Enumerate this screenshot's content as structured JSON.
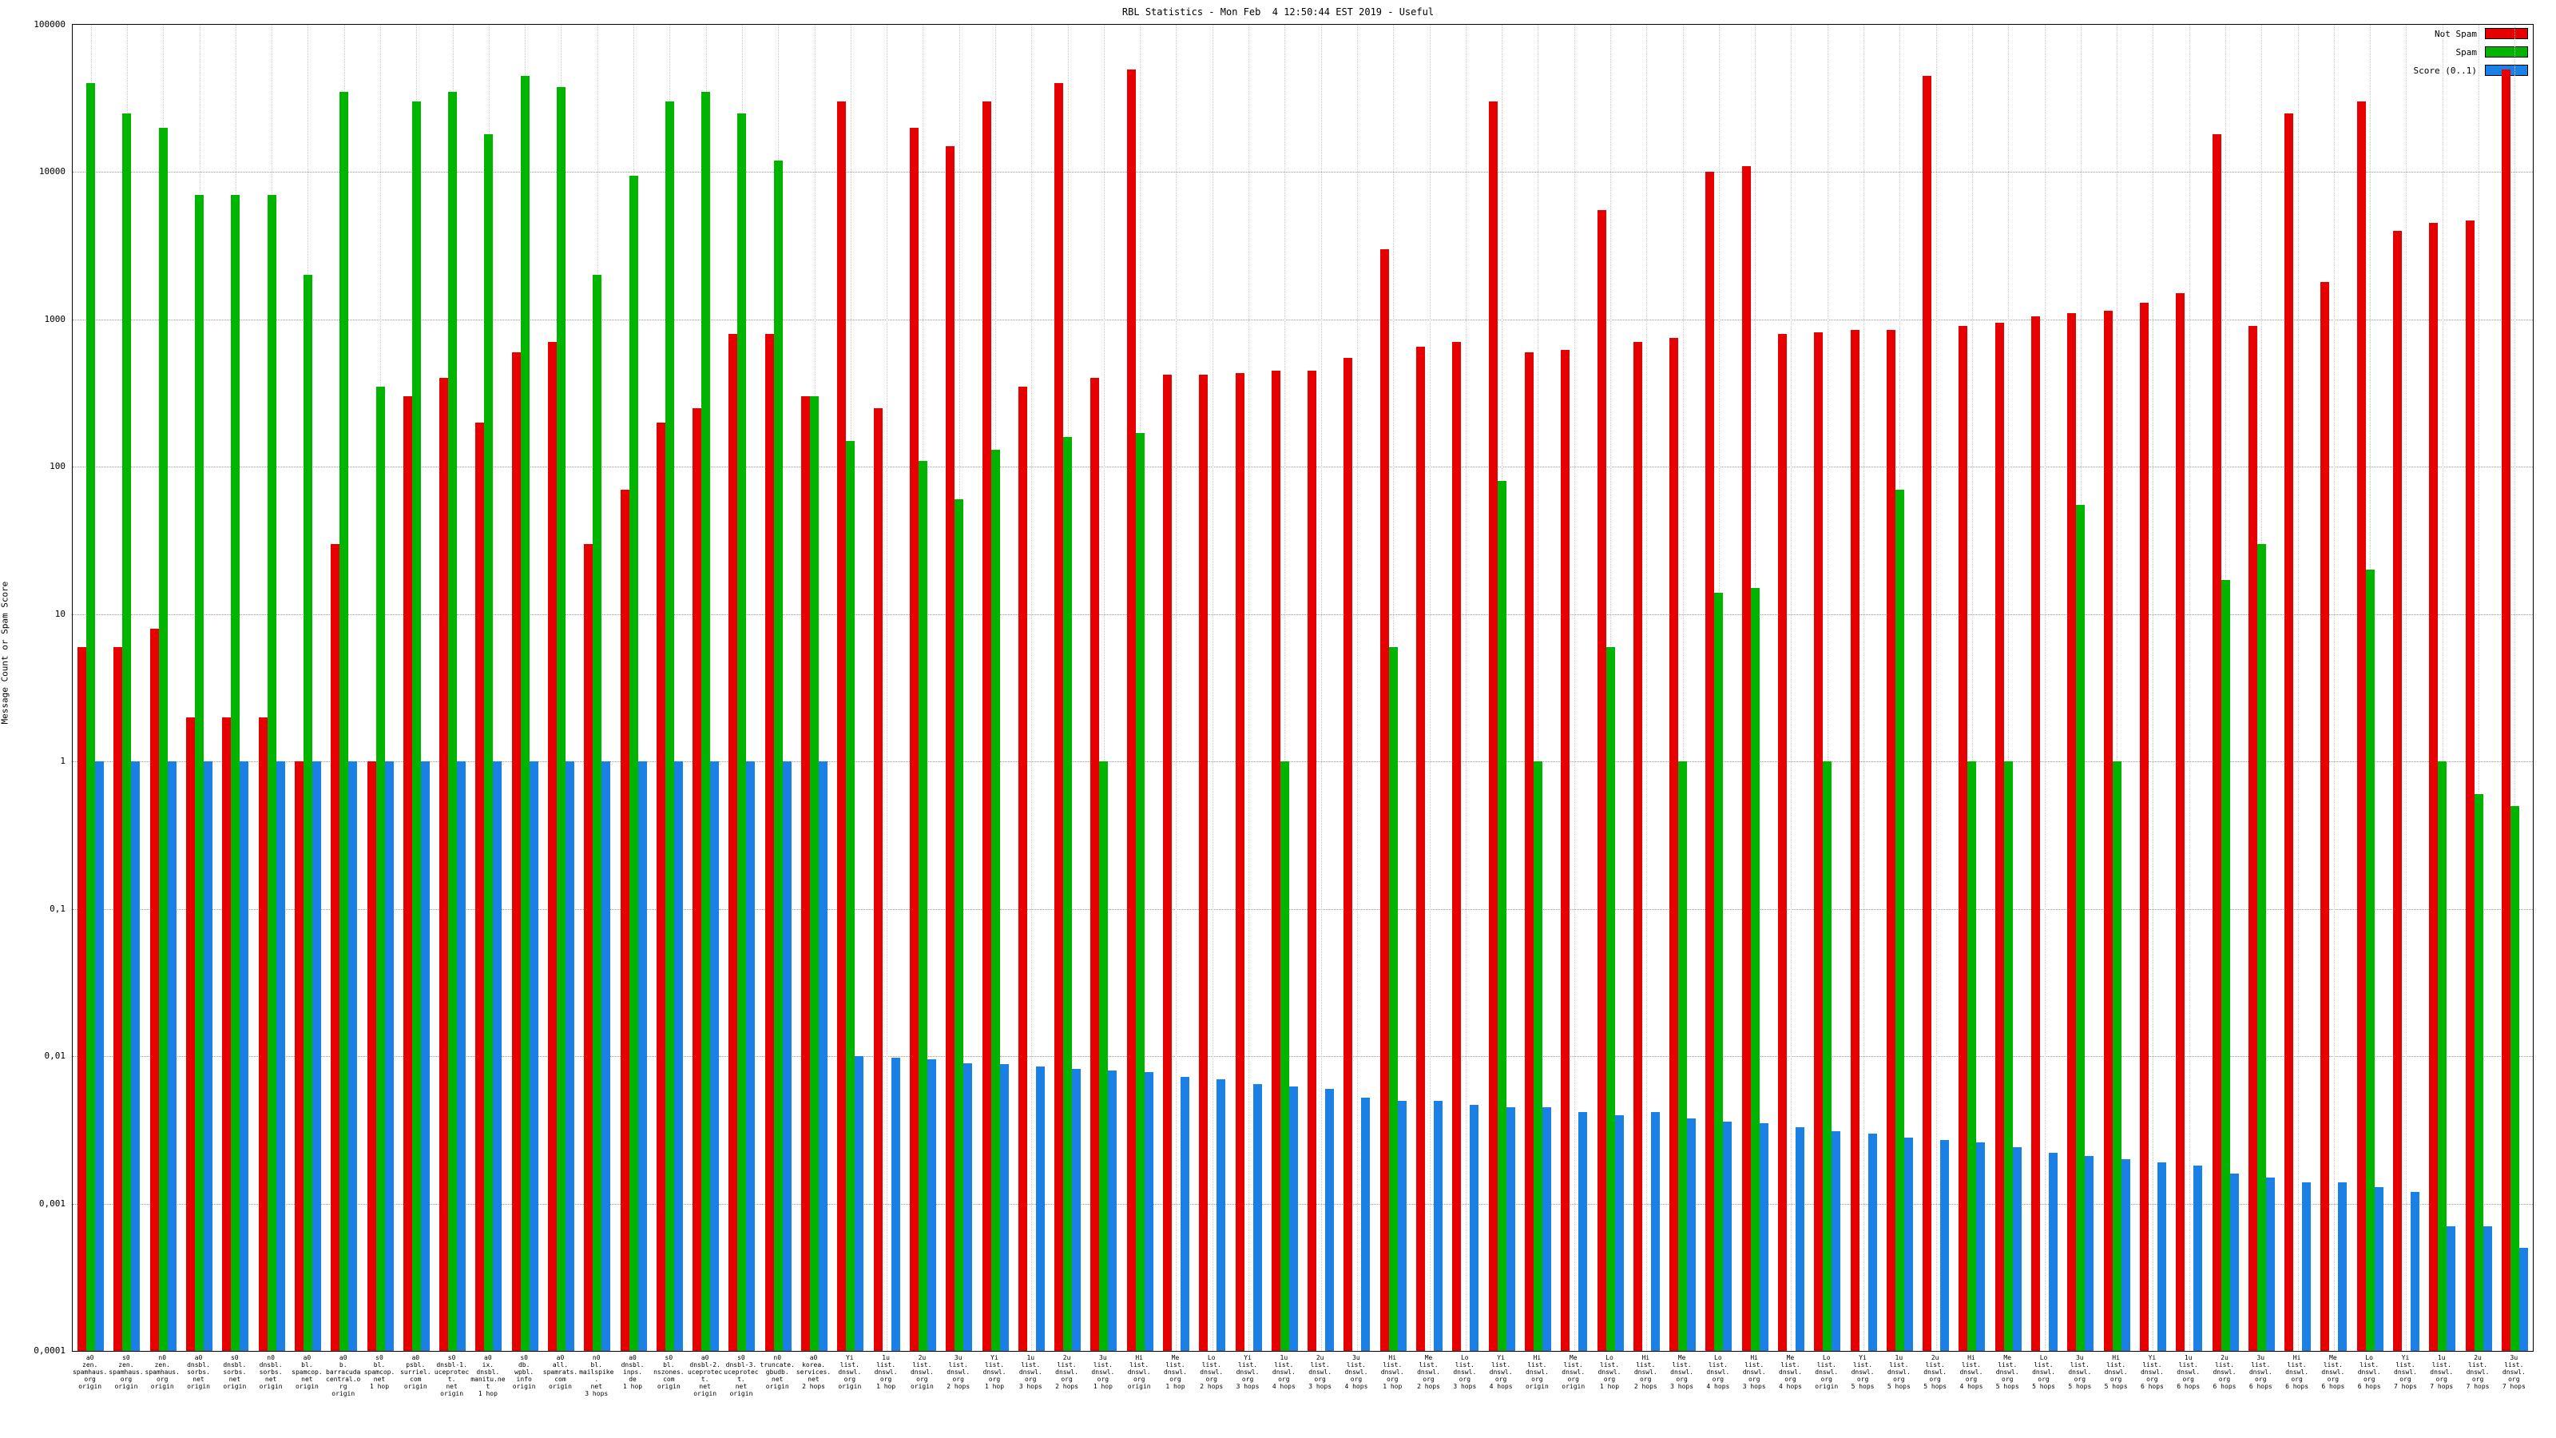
{
  "title_text": "RBL Statistics - Mon Feb  4 12:50:44 EST 2019 - Useful",
  "legend": [
    {
      "label": "Not Spam",
      "color": "#e60000"
    },
    {
      "label": "Spam",
      "color": "#00b400"
    },
    {
      "label": "Score (0..1)",
      "color": "#1a80e6"
    }
  ],
  "chart_data": {
    "type": "bar",
    "title": "RBL Statistics - Mon Feb  4 12:50:44 EST 2019 - Useful",
    "xlabel": "",
    "ylabel": "Message Count or Spam Score",
    "y_scale": "log",
    "ylim": [
      0.0001,
      100000
    ],
    "grid": true,
    "legend_position": "top-right",
    "ytick_labels": [
      "100000",
      "10000",
      "1000",
      "100",
      "10",
      "1",
      "0,1",
      "0,01",
      "0,001",
      "0,0001"
    ],
    "categories": [
      "a0\nzen.\nspamhaus.\norg\norigin",
      "s0\nzen.\nspamhaus.\norg\norigin",
      "n0\nzen.\nspamhaus.\norg\norigin",
      "a0\ndnsbl.\nsorbs.\nnet\norigin",
      "s0\ndnsbl.\nsorbs.\nnet\norigin",
      "n0\ndnsbl.\nsorbs.\nnet\norigin",
      "a0\nbl.\nspamcop.\nnet\norigin",
      "a0\nb.\nbarracuda\ncentral.org\norigin",
      "s0\nbl.\nspamcop.\nnet\n1 hop",
      "a0\npsbl.\nsurriel.\ncom\norigin",
      "s0\ndnsbl-1.\nuceprotect.\nnet\norigin",
      "a0\nix.\ndnsbl.\nmanitu.net\n1 hop",
      "s0\ndb.\nwpbl.\ninfo\norigin",
      "a0\nall.\nspamrats.\ncom\norigin",
      "n0\nbl.\nmailspike.\nnet\n3 hops",
      "a0\ndnsbl.\ninps.\nde\n1 hop",
      "s0\nbl.\nnszones.\ncom\norigin",
      "a0\ndnsbl-2.\nuceprotect.\nnet\norigin",
      "s0\ndnsbl-3.\nuceprotect.\nnet\norigin",
      "n0\ntruncate.\ngbudb.\nnet\norigin",
      "a0\nkorea.\nservices.\nnet\n2 hops",
      "Yi\nlist.\ndnswl.\norg\norigin",
      "1u\nlist.\ndnswl.\norg\n1 hop",
      "2u\nlist.\ndnswl.\norg\norigin",
      "3u\nlist.\ndnswl.\norg\n2 hops",
      "Yi\nlist.\ndnswl.\norg\n1 hop",
      "1u\nlist.\ndnswl.\norg\n3 hops",
      "2u\nlist.\ndnswl.\norg\n2 hops",
      "3u\nlist.\ndnswl.\norg\n1 hop",
      "Hi\nlist.\ndnswl.\norg\norigin",
      "Me\nlist.\ndnswl.\norg\n1 hop",
      "Lo\nlist.\ndnswl.\norg\n2 hops",
      "Yi\nlist.\ndnswl.\norg\n3 hops",
      "1u\nlist.\ndnswl.\norg\n4 hops",
      "2u\nlist.\ndnswl.\norg\n3 hops",
      "3u\nlist.\ndnswl.\norg\n4 hops",
      "Hi\nlist.\ndnswl.\norg\n1 hop",
      "Me\nlist.\ndnswl.\norg\n2 hops",
      "Lo\nlist.\ndnswl.\norg\n3 hops",
      "Yi\nlist.\ndnswl.\norg\n4 hops",
      "Hi\nlist.\ndnswl.\norg\norigin",
      "Me\nlist.\ndnswl.\norg\norigin",
      "Lo\nlist.\ndnswl.\norg\n1 hop",
      "Hi\nlist.\ndnswl.\norg\n2 hops",
      "Me\nlist.\ndnswl.\norg\n3 hops",
      "Lo\nlist.\ndnswl.\norg\n4 hops",
      "Hi\nlist.\ndnswl.\norg\n3 hops",
      "Me\nlist.\ndnswl.\norg\n4 hops",
      "Lo\nlist.\ndnswl.\norg\norigin",
      "Yi\nlist.\ndnswl.\norg\n5 hops",
      "1u\nlist.\ndnswl.\norg\n5 hops",
      "2u\nlist.\ndnswl.\norg\n5 hops",
      "Hi\nlist.\ndnswl.\norg\n4 hops",
      "Me\nlist.\ndnswl.\norg\n5 hops",
      "Lo\nlist.\ndnswl.\norg\n5 hops",
      "3u\nlist.\ndnswl.\norg\n5 hops",
      "Hi\nlist.\ndnswl.\norg\n5 hops",
      "Yi\nlist.\ndnswl.\norg\n6 hops",
      "1u\nlist.\ndnswl.\norg\n6 hops",
      "2u\nlist.\ndnswl.\norg\n6 hops",
      "3u\nlist.\ndnswl.\norg\n6 hops",
      "Hi\nlist.\ndnswl.\norg\n6 hops",
      "Me\nlist.\ndnswl.\norg\n6 hops",
      "Lo\nlist.\ndnswl.\norg\n6 hops",
      "Yi\nlist.\ndnswl.\norg\n7 hops",
      "1u\nlist.\ndnswl.\norg\n7 hops",
      "2u\nlist.\ndnswl.\norg\n7 hops",
      "3u\nlist.\ndnswl.\norg\n7 hops"
    ],
    "series": [
      {
        "name": "Not Spam",
        "color": "#e60000",
        "values": [
          6,
          6,
          8,
          2,
          2,
          2,
          1,
          30,
          1,
          300,
          400,
          200,
          600,
          700,
          30,
          70,
          200,
          250,
          800,
          800,
          300,
          30000,
          250,
          20000,
          15000,
          30000,
          350,
          40000,
          400,
          50000,
          420,
          420,
          430,
          450,
          450,
          550,
          3000,
          650,
          700,
          30000,
          600,
          620,
          5500,
          700,
          750,
          10000,
          11000,
          800,
          820,
          850,
          850,
          45000,
          900,
          950,
          1050,
          1100,
          1150,
          1300,
          1500,
          18000,
          900,
          25000,
          1800,
          30000,
          4000,
          4500,
          4700,
          50000
        ]
      },
      {
        "name": "Spam",
        "color": "#00b400",
        "values": [
          40000,
          25000,
          20000,
          7000,
          7000,
          7000,
          2000,
          35000,
          350,
          30000,
          35000,
          18000,
          45000,
          38000,
          2000,
          9500,
          30000,
          35000,
          25000,
          12000,
          300,
          150,
          null,
          110,
          60,
          130,
          null,
          160,
          1,
          170,
          null,
          null,
          null,
          1,
          null,
          null,
          6,
          null,
          null,
          80,
          1,
          null,
          6,
          null,
          1,
          14,
          15,
          null,
          1,
          null,
          70,
          null,
          1,
          1,
          null,
          55,
          1,
          null,
          null,
          17,
          30,
          null,
          null,
          20,
          null,
          1,
          0.6,
          0.5
        ]
      },
      {
        "name": "Score (0..1)",
        "color": "#1a80e6",
        "values": [
          1,
          1,
          1,
          1,
          1,
          1,
          1,
          1,
          1,
          1,
          1,
          1,
          1,
          1,
          1,
          1,
          1,
          1,
          1,
          1,
          1,
          0.01,
          0.0098,
          0.0095,
          0.009,
          0.0088,
          0.0085,
          0.0082,
          0.008,
          0.0078,
          0.0072,
          0.007,
          0.0065,
          0.0062,
          0.006,
          0.0052,
          0.005,
          0.005,
          0.0047,
          0.0045,
          0.0045,
          0.0042,
          0.004,
          0.0042,
          0.0038,
          0.0036,
          0.0035,
          0.0033,
          0.0031,
          0.003,
          0.0028,
          0.0027,
          0.0026,
          0.0024,
          0.0022,
          0.0021,
          0.002,
          0.0019,
          0.0018,
          0.0016,
          0.0015,
          0.0014,
          0.0014,
          0.0013,
          0.0012,
          0.0007,
          0.0007,
          0.0005
        ]
      }
    ]
  }
}
